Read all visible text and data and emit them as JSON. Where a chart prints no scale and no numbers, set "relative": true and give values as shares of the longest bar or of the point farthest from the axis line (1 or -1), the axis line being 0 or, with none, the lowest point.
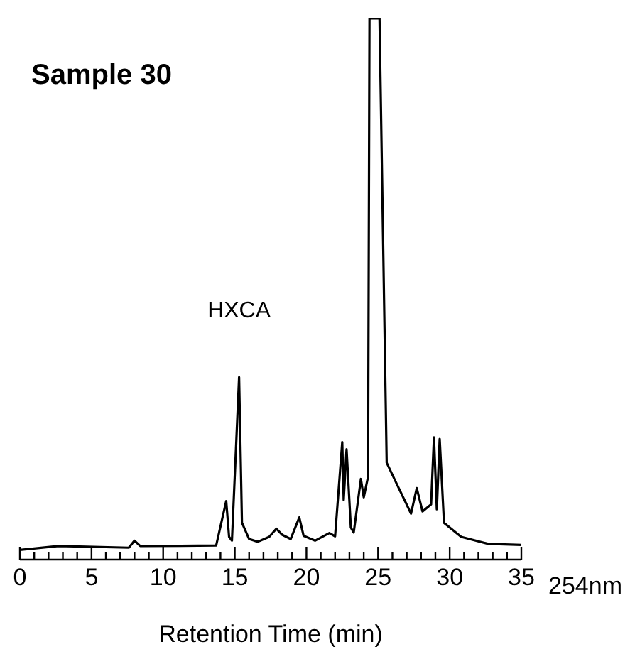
{
  "chart_data": {
    "type": "line",
    "title": "Sample 30",
    "xlabel": "Retention Time (min)",
    "relative": true,
    "x": [
      0,
      2.7,
      7.6,
      8.0,
      8.4,
      13.7,
      14.4,
      14.6,
      14.8,
      15.3,
      15.5,
      16.0,
      16.6,
      17.4,
      17.9,
      18.3,
      18.9,
      19.5,
      19.8,
      20.6,
      21.6,
      22.0,
      22.5,
      22.6,
      22.8,
      23.1,
      23.3,
      23.8,
      24.0,
      24.3,
      24.4,
      25.1,
      25.6,
      26.3,
      27.3,
      27.7,
      28.1,
      28.7,
      28.9,
      29.1,
      29.3,
      29.6,
      30.8,
      32.7,
      35.0
    ],
    "values": [
      0.018,
      0.025,
      0.022,
      0.035,
      0.025,
      0.026,
      0.108,
      0.042,
      0.035,
      0.337,
      0.068,
      0.038,
      0.033,
      0.042,
      0.057,
      0.046,
      0.038,
      0.078,
      0.044,
      0.035,
      0.049,
      0.043,
      0.217,
      0.11,
      0.204,
      0.059,
      0.05,
      0.149,
      0.115,
      0.153,
      1,
      1,
      0.179,
      0.14,
      0.085,
      0.132,
      0.089,
      0.102,
      0.226,
      0.093,
      0.223,
      0.068,
      0.042,
      0.029,
      0.027
    ],
    "color": "#000000",
    "xlim": [
      0,
      35
    ],
    "xticks": [
      0,
      {
        "value": 1,
        "label": null
      },
      {
        "value": 2,
        "label": null
      },
      {
        "value": 3,
        "label": null
      },
      {
        "value": 4,
        "label": null
      },
      5,
      {
        "value": 6,
        "label": null
      },
      {
        "value": 7,
        "label": null
      },
      {
        "value": 8,
        "label": null
      },
      {
        "value": 9,
        "label": null
      },
      10,
      {
        "value": 11,
        "label": null
      },
      {
        "value": 12,
        "label": null
      },
      {
        "value": 13,
        "label": null
      },
      {
        "value": 14,
        "label": null
      },
      15,
      {
        "value": 16,
        "label": null
      },
      {
        "value": 17,
        "label": null
      },
      {
        "value": 18,
        "label": null
      },
      {
        "value": 19,
        "label": null
      },
      20,
      {
        "value": 21,
        "label": null
      },
      {
        "value": 22,
        "label": null
      },
      {
        "value": 23,
        "label": null
      },
      {
        "value": 24,
        "label": null
      },
      25,
      {
        "value": 26,
        "label": null
      },
      {
        "value": 27,
        "label": null
      },
      {
        "value": 28,
        "label": null
      },
      {
        "value": 29,
        "label": null
      },
      30,
      {
        "value": 31,
        "label": null
      },
      {
        "value": 32,
        "label": null
      },
      {
        "value": 33,
        "label": null
      },
      {
        "value": 34,
        "label": null
      },
      35
    ],
    "annotations": [
      {
        "text": "HXCA",
        "x": 15.3,
        "y": 0.337
      },
      "254nm"
    ]
  }
}
